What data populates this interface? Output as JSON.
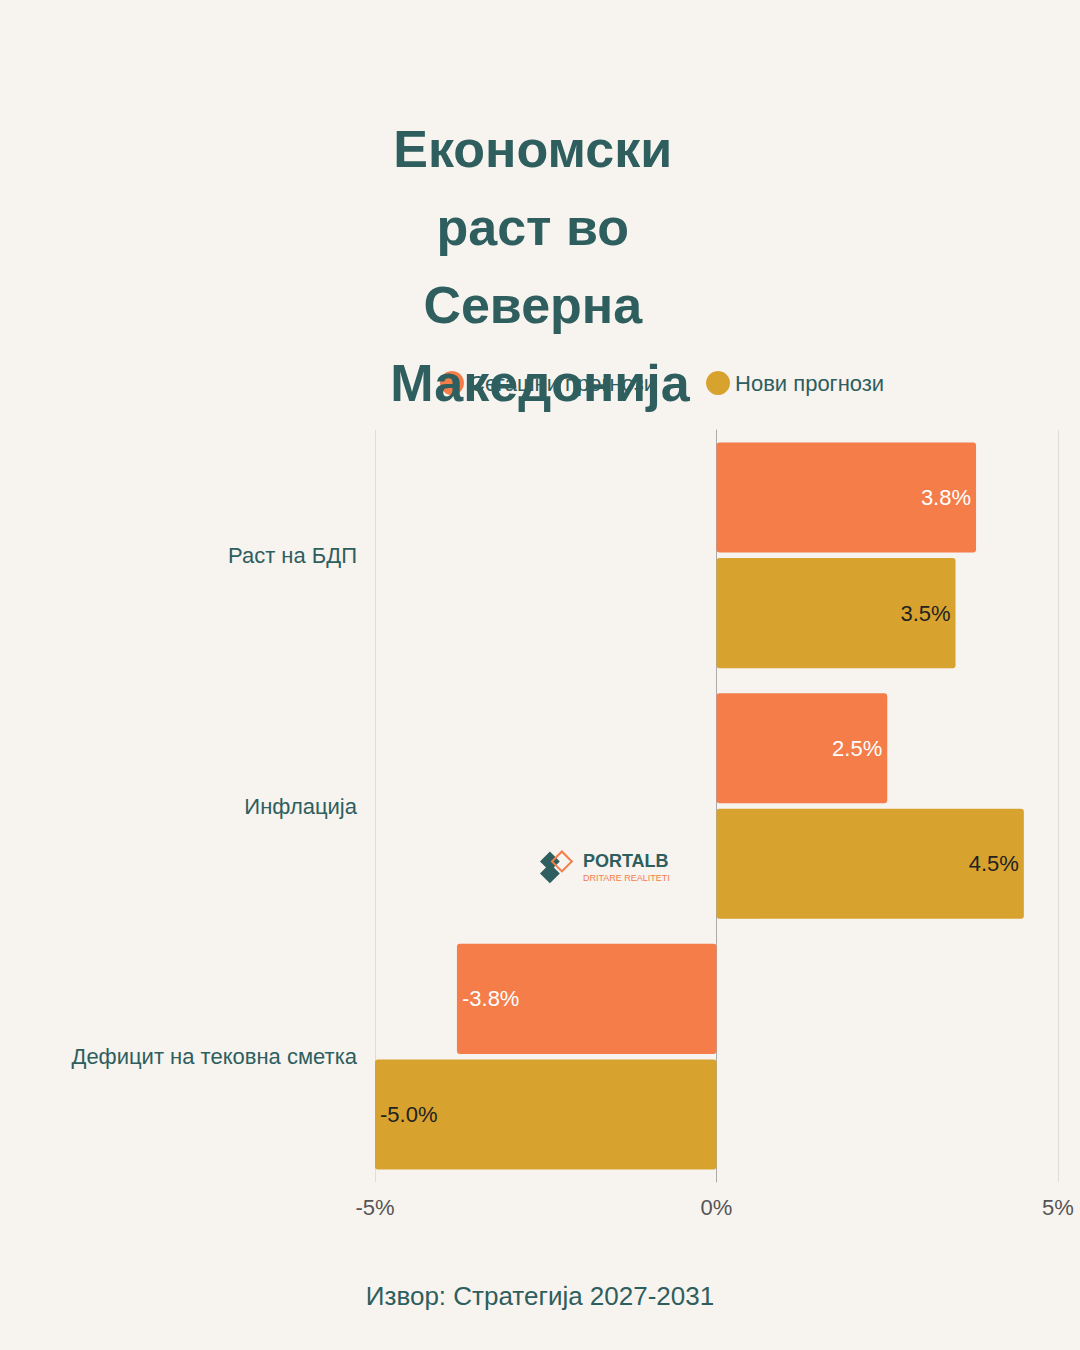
{
  "chart_data": {
    "type": "bar",
    "title": "Економски раст во Северна Македонија",
    "source": "Извор: Стратегија 2027-2031",
    "logo_text": [
      "PORTALB",
      "DRITARE REALITETI"
    ],
    "orientation": "horizontal",
    "categories": [
      "Раст на БДП",
      "Инфлација",
      "Дефицит на тековна сметка"
    ],
    "series": [
      {
        "name": "Сегашни прогнози",
        "color": "#f47d4a",
        "values": [
          3.8,
          2.5,
          -3.8
        ],
        "value_labels": [
          "3.8%",
          "2.5%",
          "-3.8%"
        ]
      },
      {
        "name": "Нови прогнози",
        "color": "#d8a22e",
        "values": [
          3.5,
          4.5,
          -5.0
        ],
        "value_labels": [
          "3.5%",
          "4.5%",
          "-5.0%"
        ]
      }
    ],
    "xlim": [
      -5,
      5
    ],
    "xticks": [
      {
        "value": -5,
        "label": "-5%"
      },
      {
        "value": 0,
        "label": "0%"
      },
      {
        "value": 5,
        "label": "5%"
      }
    ],
    "grid": true,
    "legend": "top",
    "data_labels": true
  }
}
